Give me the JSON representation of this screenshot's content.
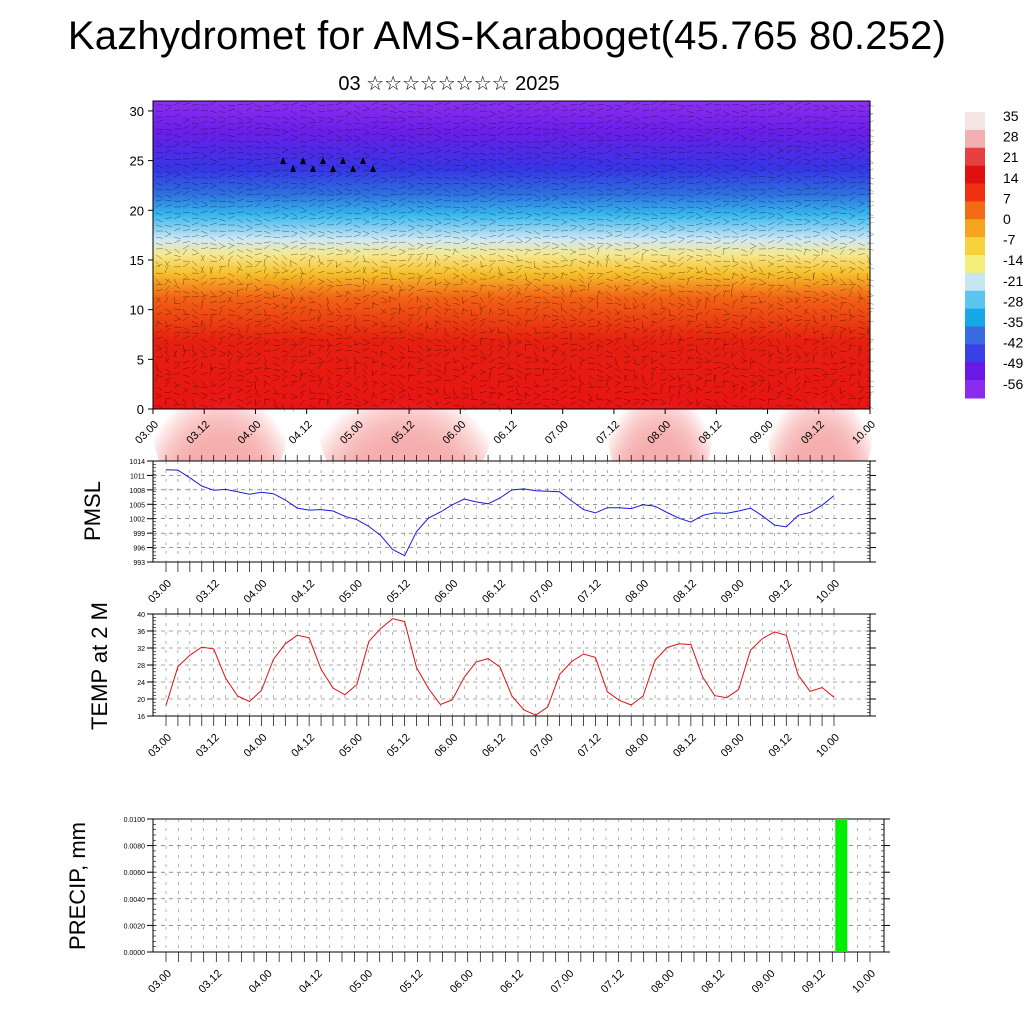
{
  "title": "Kazhydromet for AMS-Karaboget(45.765 80.252)",
  "subtitle": "03 ☆☆☆☆☆☆☆☆ 2025",
  "time_ticks": [
    "03.00",
    "03.12",
    "04.00",
    "04.12",
    "05.00",
    "05.12",
    "06.00",
    "06.12",
    "07.00",
    "07.12",
    "08.00",
    "08.12",
    "09.00",
    "09.12",
    "10.00"
  ],
  "chart_data": [
    {
      "type": "heatmap",
      "y_ticks": [
        0,
        5,
        10,
        15,
        20,
        25,
        30
      ],
      "ylim": [
        0,
        31
      ],
      "x_ticks": [
        "03.00",
        "03.12",
        "04.00",
        "04.12",
        "05.00",
        "05.12",
        "06.00",
        "06.12",
        "07.00",
        "07.12",
        "08.00",
        "08.12",
        "09.00",
        "09.12",
        "10.00"
      ],
      "colorbar_labels": [
        "35",
        "28",
        "21",
        "14",
        "7",
        "0",
        "-7",
        "-14",
        "-21",
        "-28",
        "-35",
        "-42",
        "-49",
        "-56"
      ],
      "colorbar_colors": [
        "#f5e6e6",
        "#f2b0b0",
        "#e84040",
        "#e01010",
        "#f03010",
        "#f26a14",
        "#f6a31e",
        "#f7d23a",
        "#f4ee7c",
        "#c6e6f2",
        "#5cc6ee",
        "#18a8e8",
        "#3a6ae0",
        "#3a40e8",
        "#6a18e8",
        "#8a2cf0"
      ],
      "description_of_field": "temperature (deg) vs height with wind barbs"
    },
    {
      "type": "line",
      "ylabel": "PMSL",
      "y_ticks": [
        993,
        996,
        999,
        1002,
        1005,
        1008,
        1011,
        1014
      ],
      "ylim": [
        993,
        1014
      ],
      "color": "#1a1ae0",
      "values": [
        1012.2,
        1012.1,
        1010.5,
        1008.8,
        1007.9,
        1008.1,
        1007.6,
        1007.1,
        1007.5,
        1007.2,
        1005.9,
        1004.2,
        1003.8,
        1003.9,
        1003.6,
        1002.5,
        1001.8,
        1000.4,
        998.5,
        995.6,
        994.3,
        999.3,
        1002.1,
        1003.4,
        1004.9,
        1006.1,
        1005.5,
        1005.1,
        1006.3,
        1008.0,
        1008.2,
        1007.8,
        1007.7,
        1007.6,
        1005.7,
        1003.9,
        1003.2,
        1004.3,
        1004.3,
        1004.1,
        1004.9,
        1004.6,
        1003.3,
        1002.1,
        1001.3,
        1002.7,
        1003.2,
        1003.1,
        1003.6,
        1004.2,
        1002.6,
        1000.7,
        1000.3,
        1002.7,
        1003.3,
        1004.8,
        1006.8
      ]
    },
    {
      "type": "line",
      "ylabel": "TEMP at 2 M",
      "y_ticks": [
        16,
        20,
        24,
        28,
        32,
        36,
        40
      ],
      "ylim": [
        16,
        40
      ],
      "color": "#e01010",
      "values": [
        18.5,
        27.6,
        30.3,
        32.2,
        31.8,
        24.9,
        20.7,
        19.4,
        22.0,
        29.3,
        33.0,
        35.0,
        34.4,
        27.0,
        22.6,
        21.0,
        23.4,
        33.5,
        36.6,
        38.9,
        38.2,
        27.4,
        22.5,
        18.7,
        19.8,
        25.1,
        28.7,
        29.5,
        27.5,
        20.7,
        17.4,
        16.2,
        18.1,
        25.8,
        28.8,
        30.6,
        29.8,
        21.7,
        19.7,
        18.6,
        20.7,
        29.1,
        32.1,
        33.0,
        32.8,
        25.1,
        20.8,
        20.3,
        22.2,
        31.5,
        34.2,
        35.8,
        35.0,
        25.6,
        21.8,
        22.7,
        20.4
      ]
    },
    {
      "type": "bar",
      "ylabel": "PRECIP, mm",
      "y_ticks": [
        "0.0000",
        "0.0020",
        "0.0040",
        "0.0060",
        "0.0080",
        "0.0100"
      ],
      "ylim": [
        0,
        0.01
      ],
      "color": "#00ee00",
      "bars": [
        {
          "x_index": 53,
          "value": 0.01
        }
      ]
    }
  ]
}
